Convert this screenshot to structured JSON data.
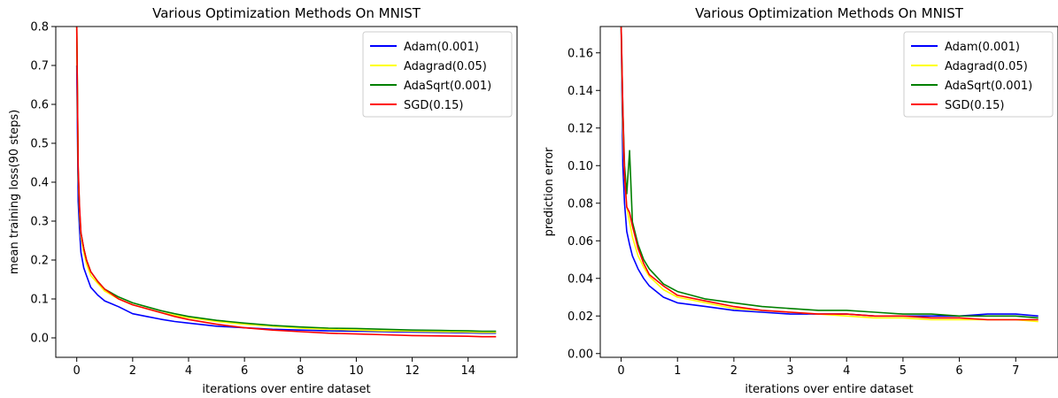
{
  "chart_data": [
    {
      "type": "line",
      "title": "Various Optimization Methods On MNIST",
      "xlabel": "iterations over entire dataset",
      "ylabel": "mean training loss(90 steps)",
      "xlim": [
        -0.75,
        15.75
      ],
      "ylim": [
        -0.05,
        0.8
      ],
      "xticks": [
        0,
        2,
        4,
        6,
        8,
        10,
        12,
        14
      ],
      "xtick_labels": [
        "0",
        "2",
        "4",
        "6",
        "8",
        "10",
        "12",
        "14"
      ],
      "yticks": [
        0.0,
        0.1,
        0.2,
        0.3,
        0.4,
        0.5,
        0.6,
        0.7,
        0.8
      ],
      "ytick_labels": [
        "0.0",
        "0.1",
        "0.2",
        "0.3",
        "0.4",
        "0.5",
        "0.6",
        "0.7",
        "0.8"
      ],
      "grid": false,
      "legend_position": "top-right",
      "series": [
        {
          "name": "Adam(0.001)",
          "color": "#0000ff",
          "x": [
            0,
            0.05,
            0.1,
            0.15,
            0.25,
            0.35,
            0.5,
            0.75,
            1,
            1.5,
            2,
            2.5,
            3,
            3.5,
            4,
            5,
            6,
            7,
            8,
            9,
            10,
            11,
            12,
            13,
            14,
            14.5,
            15
          ],
          "y": [
            0.7,
            0.35,
            0.28,
            0.22,
            0.18,
            0.16,
            0.13,
            0.11,
            0.095,
            0.08,
            0.062,
            0.055,
            0.048,
            0.042,
            0.038,
            0.03,
            0.026,
            0.022,
            0.02,
            0.018,
            0.017,
            0.016,
            0.015,
            0.014,
            0.013,
            0.012,
            0.012
          ]
        },
        {
          "name": "Adagrad(0.05)",
          "color": "#ffff00",
          "x": [
            0,
            0.05,
            0.1,
            0.15,
            0.25,
            0.35,
            0.5,
            0.75,
            1,
            1.5,
            2,
            2.5,
            3,
            3.5,
            4,
            5,
            6,
            7,
            8,
            9,
            10,
            11,
            12,
            13,
            14,
            14.5,
            15
          ],
          "y": [
            0.8,
            0.42,
            0.32,
            0.26,
            0.22,
            0.19,
            0.16,
            0.14,
            0.12,
            0.1,
            0.085,
            0.075,
            0.065,
            0.058,
            0.052,
            0.042,
            0.035,
            0.03,
            0.025,
            0.022,
            0.02,
            0.018,
            0.017,
            0.016,
            0.015,
            0.014,
            0.014
          ]
        },
        {
          "name": "AdaSqrt(0.001)",
          "color": "#008000",
          "x": [
            0,
            0.05,
            0.1,
            0.15,
            0.25,
            0.35,
            0.5,
            0.75,
            1,
            1.5,
            2,
            2.5,
            3,
            3.5,
            4,
            5,
            6,
            7,
            8,
            9,
            10,
            11,
            12,
            13,
            14,
            14.5,
            15
          ],
          "y": [
            0.8,
            0.43,
            0.33,
            0.27,
            0.23,
            0.2,
            0.17,
            0.145,
            0.125,
            0.105,
            0.09,
            0.08,
            0.07,
            0.062,
            0.055,
            0.045,
            0.038,
            0.032,
            0.028,
            0.025,
            0.024,
            0.022,
            0.02,
            0.019,
            0.018,
            0.017,
            0.017
          ]
        },
        {
          "name": "SGD(0.15)",
          "color": "#ff0000",
          "x": [
            0,
            0.05,
            0.1,
            0.15,
            0.25,
            0.35,
            0.5,
            0.75,
            1,
            1.5,
            2,
            2.5,
            3,
            3.5,
            4,
            5,
            6,
            7,
            8,
            9,
            10,
            11,
            12,
            13,
            14,
            14.5,
            15
          ],
          "y": [
            0.8,
            0.44,
            0.34,
            0.27,
            0.23,
            0.2,
            0.17,
            0.145,
            0.125,
            0.1,
            0.085,
            0.075,
            0.065,
            0.055,
            0.047,
            0.035,
            0.026,
            0.02,
            0.016,
            0.012,
            0.01,
            0.008,
            0.006,
            0.005,
            0.004,
            0.003,
            0.003
          ]
        }
      ]
    },
    {
      "type": "line",
      "title": "Various Optimization Methods On MNIST",
      "xlabel": "iterations over entire dataset",
      "ylabel": "prediction error",
      "xlim": [
        -0.37,
        7.75
      ],
      "ylim": [
        -0.002,
        0.174
      ],
      "xticks": [
        0,
        1,
        2,
        3,
        4,
        5,
        6,
        7
      ],
      "xtick_labels": [
        "0",
        "1",
        "2",
        "3",
        "4",
        "5",
        "6",
        "7"
      ],
      "yticks": [
        0.0,
        0.02,
        0.04,
        0.06,
        0.08,
        0.1,
        0.12,
        0.14,
        0.16
      ],
      "ytick_labels": [
        "0.00",
        "0.02",
        "0.04",
        "0.06",
        "0.08",
        "0.10",
        "0.12",
        "0.14",
        "0.16"
      ],
      "grid": false,
      "legend_position": "top-right",
      "series": [
        {
          "name": "Adam(0.001)",
          "color": "#0000ff",
          "x": [
            0,
            0.03,
            0.06,
            0.1,
            0.15,
            0.2,
            0.3,
            0.4,
            0.5,
            0.75,
            1,
            1.5,
            2,
            2.5,
            3,
            3.5,
            4,
            4.5,
            5,
            5.5,
            6,
            6.5,
            7,
            7.4
          ],
          "y": [
            0.174,
            0.1,
            0.08,
            0.065,
            0.058,
            0.052,
            0.045,
            0.04,
            0.036,
            0.03,
            0.027,
            0.025,
            0.023,
            0.022,
            0.021,
            0.021,
            0.021,
            0.02,
            0.02,
            0.02,
            0.02,
            0.021,
            0.021,
            0.02
          ]
        },
        {
          "name": "Adagrad(0.05)",
          "color": "#ffff00",
          "x": [
            0,
            0.03,
            0.06,
            0.1,
            0.15,
            0.2,
            0.3,
            0.4,
            0.5,
            0.75,
            1,
            1.5,
            2,
            2.5,
            3,
            3.5,
            4,
            4.5,
            5,
            5.5,
            6,
            6.5,
            7,
            7.4
          ],
          "y": [
            0.174,
            0.12,
            0.095,
            0.078,
            0.07,
            0.062,
            0.052,
            0.046,
            0.041,
            0.034,
            0.03,
            0.027,
            0.024,
            0.023,
            0.022,
            0.021,
            0.02,
            0.019,
            0.019,
            0.018,
            0.018,
            0.018,
            0.018,
            0.017
          ]
        },
        {
          "name": "AdaSqrt(0.001)",
          "color": "#008000",
          "x": [
            0,
            0.03,
            0.06,
            0.1,
            0.15,
            0.2,
            0.3,
            0.4,
            0.5,
            0.75,
            1,
            1.5,
            2,
            2.5,
            3,
            3.5,
            4,
            4.5,
            5,
            5.5,
            6,
            6.5,
            7,
            7.4
          ],
          "y": [
            0.174,
            0.13,
            0.1,
            0.085,
            0.108,
            0.07,
            0.058,
            0.05,
            0.045,
            0.037,
            0.033,
            0.029,
            0.027,
            0.025,
            0.024,
            0.023,
            0.023,
            0.022,
            0.021,
            0.021,
            0.02,
            0.02,
            0.02,
            0.019
          ]
        },
        {
          "name": "SGD(0.15)",
          "color": "#ff0000",
          "x": [
            0,
            0.03,
            0.06,
            0.1,
            0.15,
            0.2,
            0.3,
            0.4,
            0.5,
            0.75,
            1,
            1.5,
            2,
            2.5,
            3,
            3.5,
            4,
            4.5,
            5,
            5.5,
            6,
            6.5,
            7,
            7.4
          ],
          "y": [
            0.174,
            0.13,
            0.095,
            0.078,
            0.075,
            0.068,
            0.056,
            0.048,
            0.042,
            0.036,
            0.031,
            0.028,
            0.025,
            0.023,
            0.022,
            0.021,
            0.021,
            0.02,
            0.02,
            0.019,
            0.019,
            0.018,
            0.018,
            0.018
          ]
        }
      ]
    }
  ]
}
